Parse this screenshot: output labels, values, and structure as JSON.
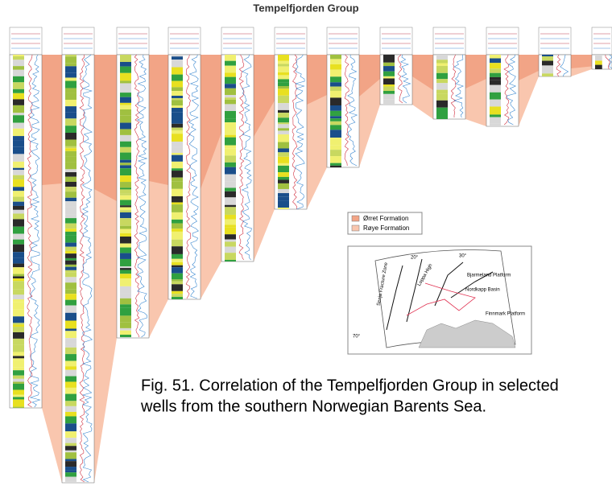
{
  "title": "Tempelfjorden Group",
  "legend": {
    "items": [
      "Ørret Formation",
      "Røye Formation"
    ]
  },
  "map": {
    "labels": [
      "20°",
      "30°",
      "70°",
      "Bjarmeland Platform",
      "Nordkapp Basin",
      "Finnmark Platform",
      "Loppa High",
      "Senja Fracture Zone"
    ]
  },
  "caption": {
    "lines": [
      "Fig. 51. Correlation of the Tempelfjorden Group in selected",
      "wells from the southern Norwegian Barents Sea."
    ]
  }
}
